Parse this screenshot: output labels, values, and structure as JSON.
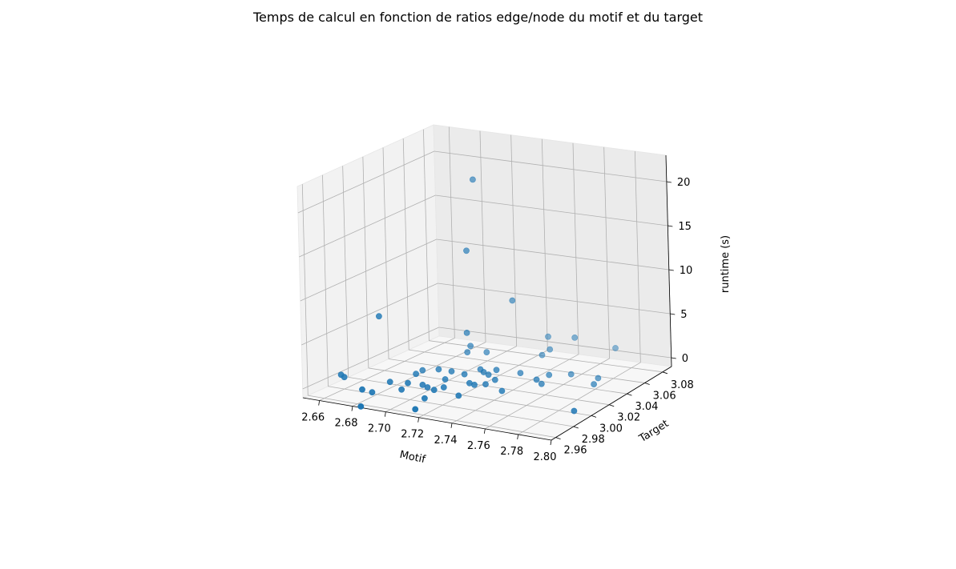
{
  "chart_data": {
    "type": "scatter",
    "projection": "3d",
    "title": "Temps de calcul en fonction de ratios edge/node du motif et du target",
    "xlabel": "Motif",
    "ylabel": "Target",
    "zlabel": "runtime (s)",
    "xlim": [
      2.65,
      2.8
    ],
    "ylim": [
      2.955,
      3.09
    ],
    "zlim": [
      -1,
      23
    ],
    "xticks": [
      "2.66",
      "2.68",
      "2.70",
      "2.72",
      "2.74",
      "2.76",
      "2.78",
      "2.80"
    ],
    "yticks": [
      "2.96",
      "2.98",
      "3.00",
      "3.02",
      "3.04",
      "3.06",
      "3.08"
    ],
    "zticks": [
      "0",
      "5",
      "10",
      "15",
      "20"
    ],
    "grid": true,
    "marker_color": "#1f77b4",
    "points": [
      {
        "x": 2.703,
        "y": 3.045,
        "z": 20.5
      },
      {
        "x": 2.704,
        "y": 3.035,
        "z": 13.0
      },
      {
        "x": 2.67,
        "y": 3.0,
        "z": 6.5
      },
      {
        "x": 2.723,
        "y": 3.05,
        "z": 7.0
      },
      {
        "x": 2.706,
        "y": 3.03,
        "z": 4.0
      },
      {
        "x": 2.705,
        "y": 3.035,
        "z": 2.2
      },
      {
        "x": 2.706,
        "y": 3.03,
        "z": 1.8
      },
      {
        "x": 2.733,
        "y": 3.07,
        "z": 2.0
      },
      {
        "x": 2.708,
        "y": 3.01,
        "z": 0.8
      },
      {
        "x": 2.712,
        "y": 3.04,
        "z": 1.4
      },
      {
        "x": 2.74,
        "y": 3.06,
        "z": 1.3
      },
      {
        "x": 2.75,
        "y": 3.07,
        "z": 2.3
      },
      {
        "x": 2.738,
        "y": 3.055,
        "z": 0.9
      },
      {
        "x": 2.77,
        "y": 3.08,
        "z": 1.0
      },
      {
        "x": 2.655,
        "y": 2.985,
        "z": 0.2
      },
      {
        "x": 2.657,
        "y": 2.985,
        "z": 0.0
      },
      {
        "x": 2.677,
        "y": 2.97,
        "z": 0.0
      },
      {
        "x": 2.68,
        "y": 2.975,
        "z": -0.5
      },
      {
        "x": 2.685,
        "y": 2.985,
        "z": 0.3
      },
      {
        "x": 2.695,
        "y": 2.98,
        "z": 0.0
      },
      {
        "x": 2.696,
        "y": 2.985,
        "z": 0.5
      },
      {
        "x": 2.692,
        "y": 3.0,
        "z": 0.6
      },
      {
        "x": 2.69,
        "y": 3.01,
        "z": 0.4
      },
      {
        "x": 2.7,
        "y": 3.01,
        "z": 0.8
      },
      {
        "x": 2.702,
        "y": 2.99,
        "z": 0.2
      },
      {
        "x": 2.705,
        "y": 2.99,
        "z": 0.0
      },
      {
        "x": 2.712,
        "y": 2.985,
        "z": 0.2
      },
      {
        "x": 2.715,
        "y": 2.99,
        "z": 0.3
      },
      {
        "x": 2.71,
        "y": 3.0,
        "z": 0.5
      },
      {
        "x": 2.716,
        "y": 3.01,
        "z": 0.7
      },
      {
        "x": 2.712,
        "y": 2.975,
        "z": -0.2
      },
      {
        "x": 2.715,
        "y": 2.96,
        "z": -0.5
      },
      {
        "x": 2.688,
        "y": 2.95,
        "z": -0.5
      },
      {
        "x": 2.725,
        "y": 3.0,
        "z": 0.5
      },
      {
        "x": 2.728,
        "y": 3.0,
        "z": 0.4
      },
      {
        "x": 2.732,
        "y": 3.005,
        "z": 0.3
      },
      {
        "x": 2.735,
        "y": 3.01,
        "z": 0.6
      },
      {
        "x": 2.725,
        "y": 3.015,
        "z": 0.9
      },
      {
        "x": 2.72,
        "y": 3.02,
        "z": 0.8
      },
      {
        "x": 2.728,
        "y": 3.015,
        "z": 0.7
      },
      {
        "x": 2.73,
        "y": 3.02,
        "z": 1.0
      },
      {
        "x": 2.727,
        "y": 2.985,
        "z": 0.0
      },
      {
        "x": 2.745,
        "y": 3.0,
        "z": 0.2
      },
      {
        "x": 2.755,
        "y": 3.02,
        "z": 0.6
      },
      {
        "x": 2.757,
        "y": 3.03,
        "z": 0.6
      },
      {
        "x": 2.758,
        "y": 3.02,
        "z": 0.2
      },
      {
        "x": 2.765,
        "y": 3.04,
        "z": 0.3
      },
      {
        "x": 2.785,
        "y": 3.03,
        "z": 0.3
      },
      {
        "x": 2.795,
        "y": 2.99,
        "z": 0.0
      },
      {
        "x": 2.782,
        "y": 3.04,
        "z": 0.3
      },
      {
        "x": 2.742,
        "y": 3.025,
        "z": 0.7
      }
    ]
  }
}
